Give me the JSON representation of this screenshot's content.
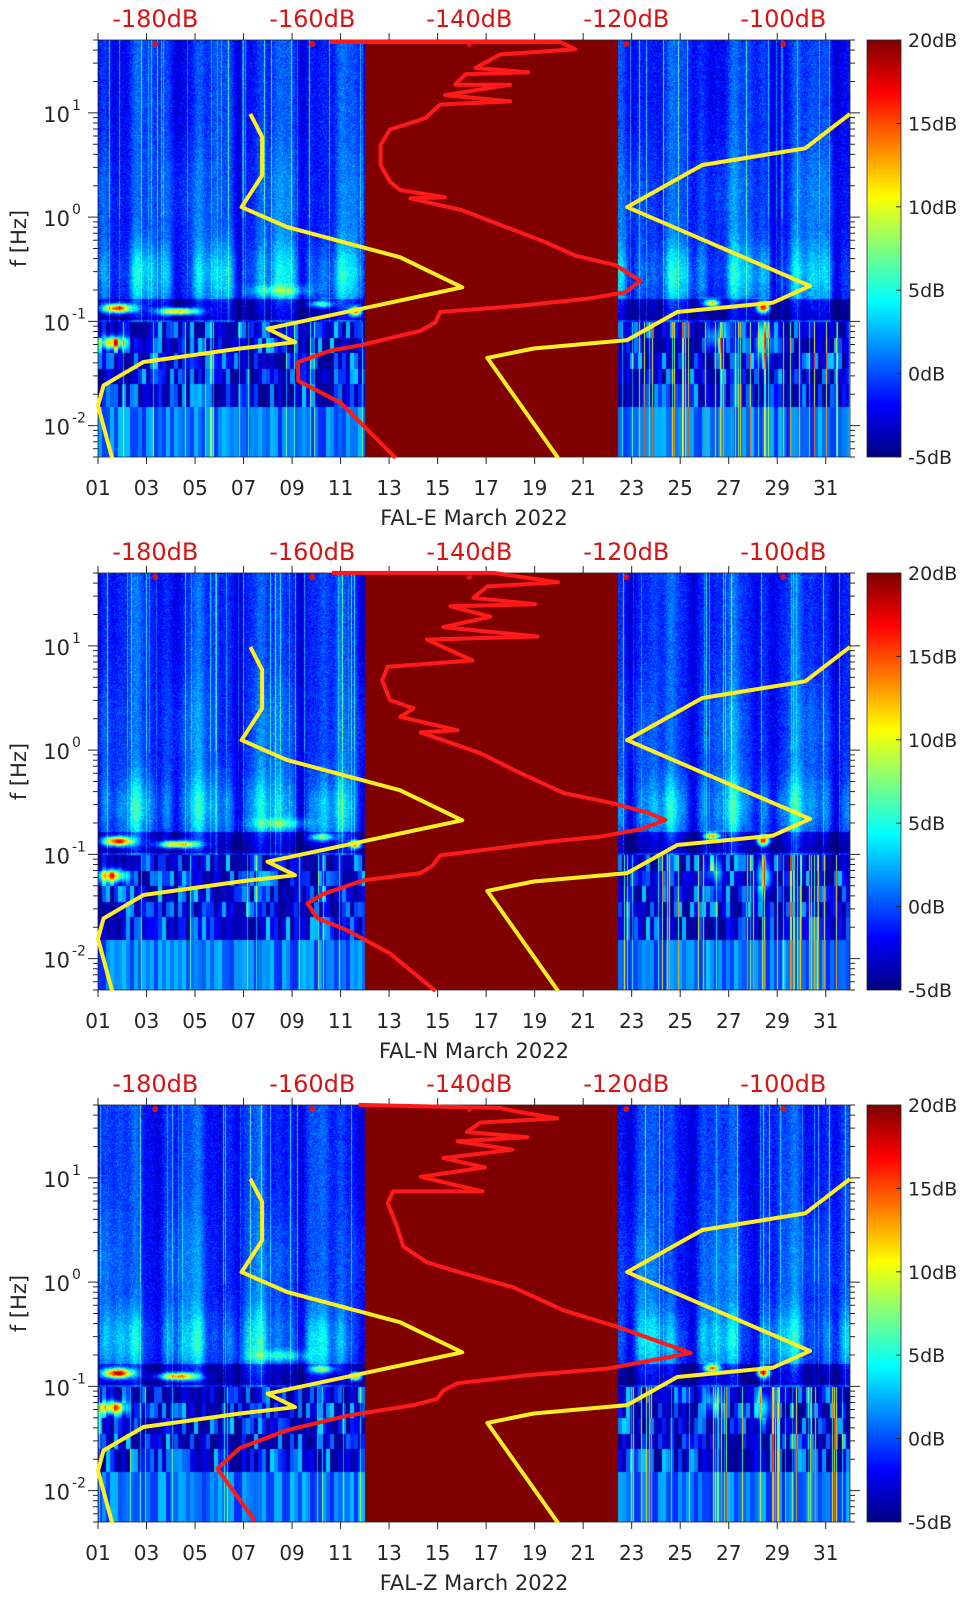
{
  "common": {
    "xlim_day": [
      1,
      32
    ],
    "ylim_hz": [
      0.005,
      50
    ],
    "db_axis_lim": [
      -187.3,
      -91.5
    ],
    "data_gap_days": [
      12.0,
      22.4
    ],
    "x_ticks": {
      "values": [
        1,
        3,
        5,
        7,
        9,
        11,
        13,
        15,
        17,
        19,
        21,
        23,
        25,
        27,
        29,
        31
      ],
      "labels": [
        "01",
        "03",
        "05",
        "07",
        "09",
        "11",
        "13",
        "15",
        "17",
        "19",
        "21",
        "23",
        "25",
        "27",
        "29",
        "31"
      ]
    },
    "y_ticks": [
      {
        "log10_f": 1,
        "base": "10",
        "exp": "1"
      },
      {
        "log10_f": 0,
        "base": "10",
        "exp": "0"
      },
      {
        "log10_f": -1,
        "base": "10",
        "exp": "-1"
      },
      {
        "log10_f": -2,
        "base": "10",
        "exp": "-2"
      }
    ],
    "ylabel": "f [Hz]",
    "top_axis": {
      "values": [
        -180,
        -160,
        -140,
        -120,
        -100
      ],
      "labels": [
        "-180dB",
        "-160dB",
        "-140dB",
        "-120dB",
        "-100dB"
      ]
    },
    "colorbar": {
      "range_db": [
        -5,
        20
      ],
      "ticks": [
        20,
        15,
        10,
        5,
        0,
        -5
      ],
      "labels": [
        "20dB",
        "15dB",
        "10dB",
        "5dB",
        "0dB",
        "-5dB"
      ],
      "colormap": "jet"
    },
    "colors": {
      "psd_line": "#ff1a1a",
      "model_line": "#ffee22",
      "label_red": "#d41515"
    },
    "models": {
      "low_noise_model_log10f_db": [
        [
          0.99,
          -167.9
        ],
        [
          0.77,
          -166.4
        ],
        [
          0.4,
          -166.4
        ],
        [
          0.096,
          -169.0
        ],
        [
          -0.096,
          -163.2
        ],
        [
          -0.385,
          -148.8
        ],
        [
          -0.673,
          -140.9
        ],
        [
          -1.07,
          -165.7
        ],
        [
          -1.2,
          -162.2
        ],
        [
          -1.26,
          -169.2
        ],
        [
          -1.39,
          -181.5
        ],
        [
          -1.615,
          -186.6
        ],
        [
          -1.81,
          -187.3
        ],
        [
          -2.31,
          -185.5
        ]
      ],
      "high_noise_model_log10f_db": [
        [
          0.99,
          -91.5
        ],
        [
          0.66,
          -97.2
        ],
        [
          0.5,
          -110.3
        ],
        [
          0.096,
          -119.9
        ],
        [
          -0.66,
          -96.6
        ],
        [
          -0.82,
          -101.3
        ],
        [
          -0.91,
          -113.5
        ],
        [
          -1.18,
          -119.9
        ],
        [
          -1.26,
          -131.8
        ],
        [
          -1.35,
          -137.7
        ],
        [
          -2.31,
          -128.7
        ]
      ]
    }
  },
  "chart_data": [
    {
      "type": "heatmap",
      "title": "FAL-E March 2022",
      "xlabel": "FAL-E March 2022",
      "ylabel": "f [Hz]",
      "psd_log10f_db": [
        [
          1.68,
          -157.7
        ],
        [
          1.68,
          -128.4
        ],
        [
          1.61,
          -126.5
        ],
        [
          1.56,
          -136.1
        ],
        [
          1.43,
          -139.2
        ],
        [
          1.39,
          -132.5
        ],
        [
          1.37,
          -140.5
        ],
        [
          1.27,
          -141.8
        ],
        [
          1.27,
          -134.8
        ],
        [
          1.17,
          -143.1
        ],
        [
          1.11,
          -134.8
        ],
        [
          1.08,
          -143.7
        ],
        [
          0.95,
          -145.6
        ],
        [
          0.84,
          -150.1
        ],
        [
          0.69,
          -151.3
        ],
        [
          0.5,
          -151.3
        ],
        [
          0.34,
          -150.1
        ],
        [
          0.26,
          -148.8
        ],
        [
          0.19,
          -143.1
        ],
        [
          0.18,
          -147.5
        ],
        [
          0.07,
          -141.1
        ],
        [
          -0.11,
          -134.8
        ],
        [
          -0.24,
          -130.3
        ],
        [
          -0.37,
          -126.5
        ],
        [
          -0.46,
          -121.4
        ],
        [
          -0.61,
          -118.2
        ],
        [
          -0.72,
          -120.1
        ],
        [
          -0.78,
          -124.6
        ],
        [
          -0.85,
          -133.5
        ],
        [
          -0.91,
          -143.7
        ],
        [
          -1.01,
          -144.3
        ],
        [
          -1.09,
          -146.2
        ],
        [
          -1.23,
          -153.9
        ],
        [
          -1.28,
          -157.7
        ],
        [
          -1.39,
          -161.8
        ],
        [
          -1.57,
          -161.8
        ],
        [
          -1.78,
          -156.4
        ],
        [
          -2.31,
          -149.4
        ]
      ]
    },
    {
      "type": "heatmap",
      "title": "FAL-N March 2022",
      "xlabel": "FAL-N March 2022",
      "ylabel": "f [Hz]",
      "psd_log10f_db": [
        [
          1.7,
          -157.5
        ],
        [
          1.7,
          -136.9
        ],
        [
          1.61,
          -128.7
        ],
        [
          1.57,
          -137.7
        ],
        [
          1.46,
          -139.5
        ],
        [
          1.4,
          -131.6
        ],
        [
          1.38,
          -142.4
        ],
        [
          1.28,
          -137.3
        ],
        [
          1.18,
          -143.3
        ],
        [
          1.09,
          -131.3
        ],
        [
          1.06,
          -145.4
        ],
        [
          0.86,
          -139.6
        ],
        [
          0.8,
          -150.4
        ],
        [
          0.67,
          -151.1
        ],
        [
          0.48,
          -150.1
        ],
        [
          0.4,
          -147.1
        ],
        [
          0.32,
          -148.8
        ],
        [
          0.19,
          -141.5
        ],
        [
          0.17,
          -146.2
        ],
        [
          -0.03,
          -138.6
        ],
        [
          -0.22,
          -133.5
        ],
        [
          -0.41,
          -128.0
        ],
        [
          -0.51,
          -121.7
        ],
        [
          -0.6,
          -117.3
        ],
        [
          -0.67,
          -115.0
        ],
        [
          -0.76,
          -118.2
        ],
        [
          -0.83,
          -123.3
        ],
        [
          -0.88,
          -130.1
        ],
        [
          -1.01,
          -143.7
        ],
        [
          -1.11,
          -144.7
        ],
        [
          -1.18,
          -146.2
        ],
        [
          -1.25,
          -153.5
        ],
        [
          -1.38,
          -158.6
        ],
        [
          -1.47,
          -160.6
        ],
        [
          -1.61,
          -159.4
        ],
        [
          -1.73,
          -155.5
        ],
        [
          -1.95,
          -150.1
        ],
        [
          -2.31,
          -144.3
        ]
      ]
    },
    {
      "type": "heatmap",
      "title": "FAL-Z March 2022",
      "xlabel": "FAL-Z March 2022",
      "ylabel": "f [Hz]",
      "psd_log10f_db": [
        [
          1.7,
          -154.1
        ],
        [
          1.67,
          -136.1
        ],
        [
          1.63,
          -133.5
        ],
        [
          1.57,
          -128.8
        ],
        [
          1.53,
          -138.6
        ],
        [
          1.44,
          -140.3
        ],
        [
          1.39,
          -132.6
        ],
        [
          1.35,
          -141.5
        ],
        [
          1.27,
          -134.5
        ],
        [
          1.19,
          -143.3
        ],
        [
          1.1,
          -138.0
        ],
        [
          1.01,
          -146.2
        ],
        [
          0.87,
          -138.3
        ],
        [
          0.87,
          -149.7
        ],
        [
          0.76,
          -150.4
        ],
        [
          0.53,
          -149.2
        ],
        [
          0.34,
          -148.4
        ],
        [
          0.19,
          -145.4
        ],
        [
          0.1,
          -141.5
        ],
        [
          -0.05,
          -134.4
        ],
        [
          -0.27,
          -128.0
        ],
        [
          -0.43,
          -121.1
        ],
        [
          -0.68,
          -111.8
        ],
        [
          -0.83,
          -122.4
        ],
        [
          -0.89,
          -132.2
        ],
        [
          -0.97,
          -141.5
        ],
        [
          -1.04,
          -143.3
        ],
        [
          -1.12,
          -144.1
        ],
        [
          -1.18,
          -147.1
        ],
        [
          -1.28,
          -155.5
        ],
        [
          -1.42,
          -163.2
        ],
        [
          -1.59,
          -169.2
        ],
        [
          -1.79,
          -172.1
        ],
        [
          -2.29,
          -167.3
        ]
      ]
    }
  ]
}
